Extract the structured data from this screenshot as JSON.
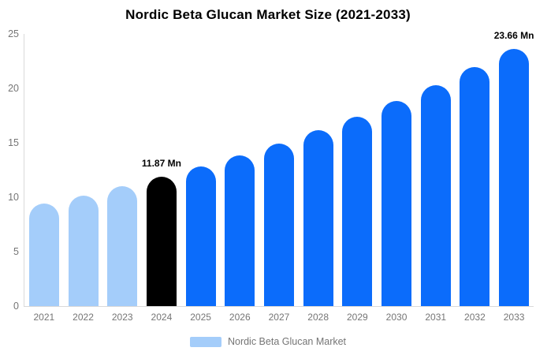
{
  "chart_data": {
    "type": "bar",
    "title": "Nordic Beta Glucan Market Size (2021-2033)",
    "unit": "Mn",
    "categories": [
      "2021",
      "2022",
      "2023",
      "2024",
      "2025",
      "2026",
      "2027",
      "2028",
      "2029",
      "2030",
      "2031",
      "2032",
      "2033"
    ],
    "values": [
      9.43,
      10.18,
      10.99,
      11.87,
      12.82,
      13.84,
      14.94,
      16.13,
      17.42,
      18.81,
      20.31,
      21.93,
      23.66
    ],
    "bar_styles": [
      "light",
      "light",
      "light",
      "dark",
      "blue",
      "blue",
      "blue",
      "blue",
      "blue",
      "blue",
      "blue",
      "blue",
      "blue"
    ],
    "annotations": [
      {
        "category": "2024",
        "text": "11.87 Mn"
      },
      {
        "category": "2033",
        "text": "23.66 Mn"
      }
    ],
    "xlabel": "",
    "ylabel": "",
    "ylim": [
      0,
      25
    ],
    "yticks": [
      0,
      5,
      10,
      15,
      20,
      25
    ],
    "grid": false,
    "legend_position": "bottom",
    "colors": {
      "light": "#a4cdfa",
      "dark": "#000000",
      "blue": "#0b6cfb",
      "axis_line": "#d9d9d9",
      "tick_text": "#757575",
      "title_text": "#000000"
    },
    "legend": {
      "label": "Nordic Beta Glucan Market",
      "swatch_color": "#a4cdfa"
    }
  }
}
